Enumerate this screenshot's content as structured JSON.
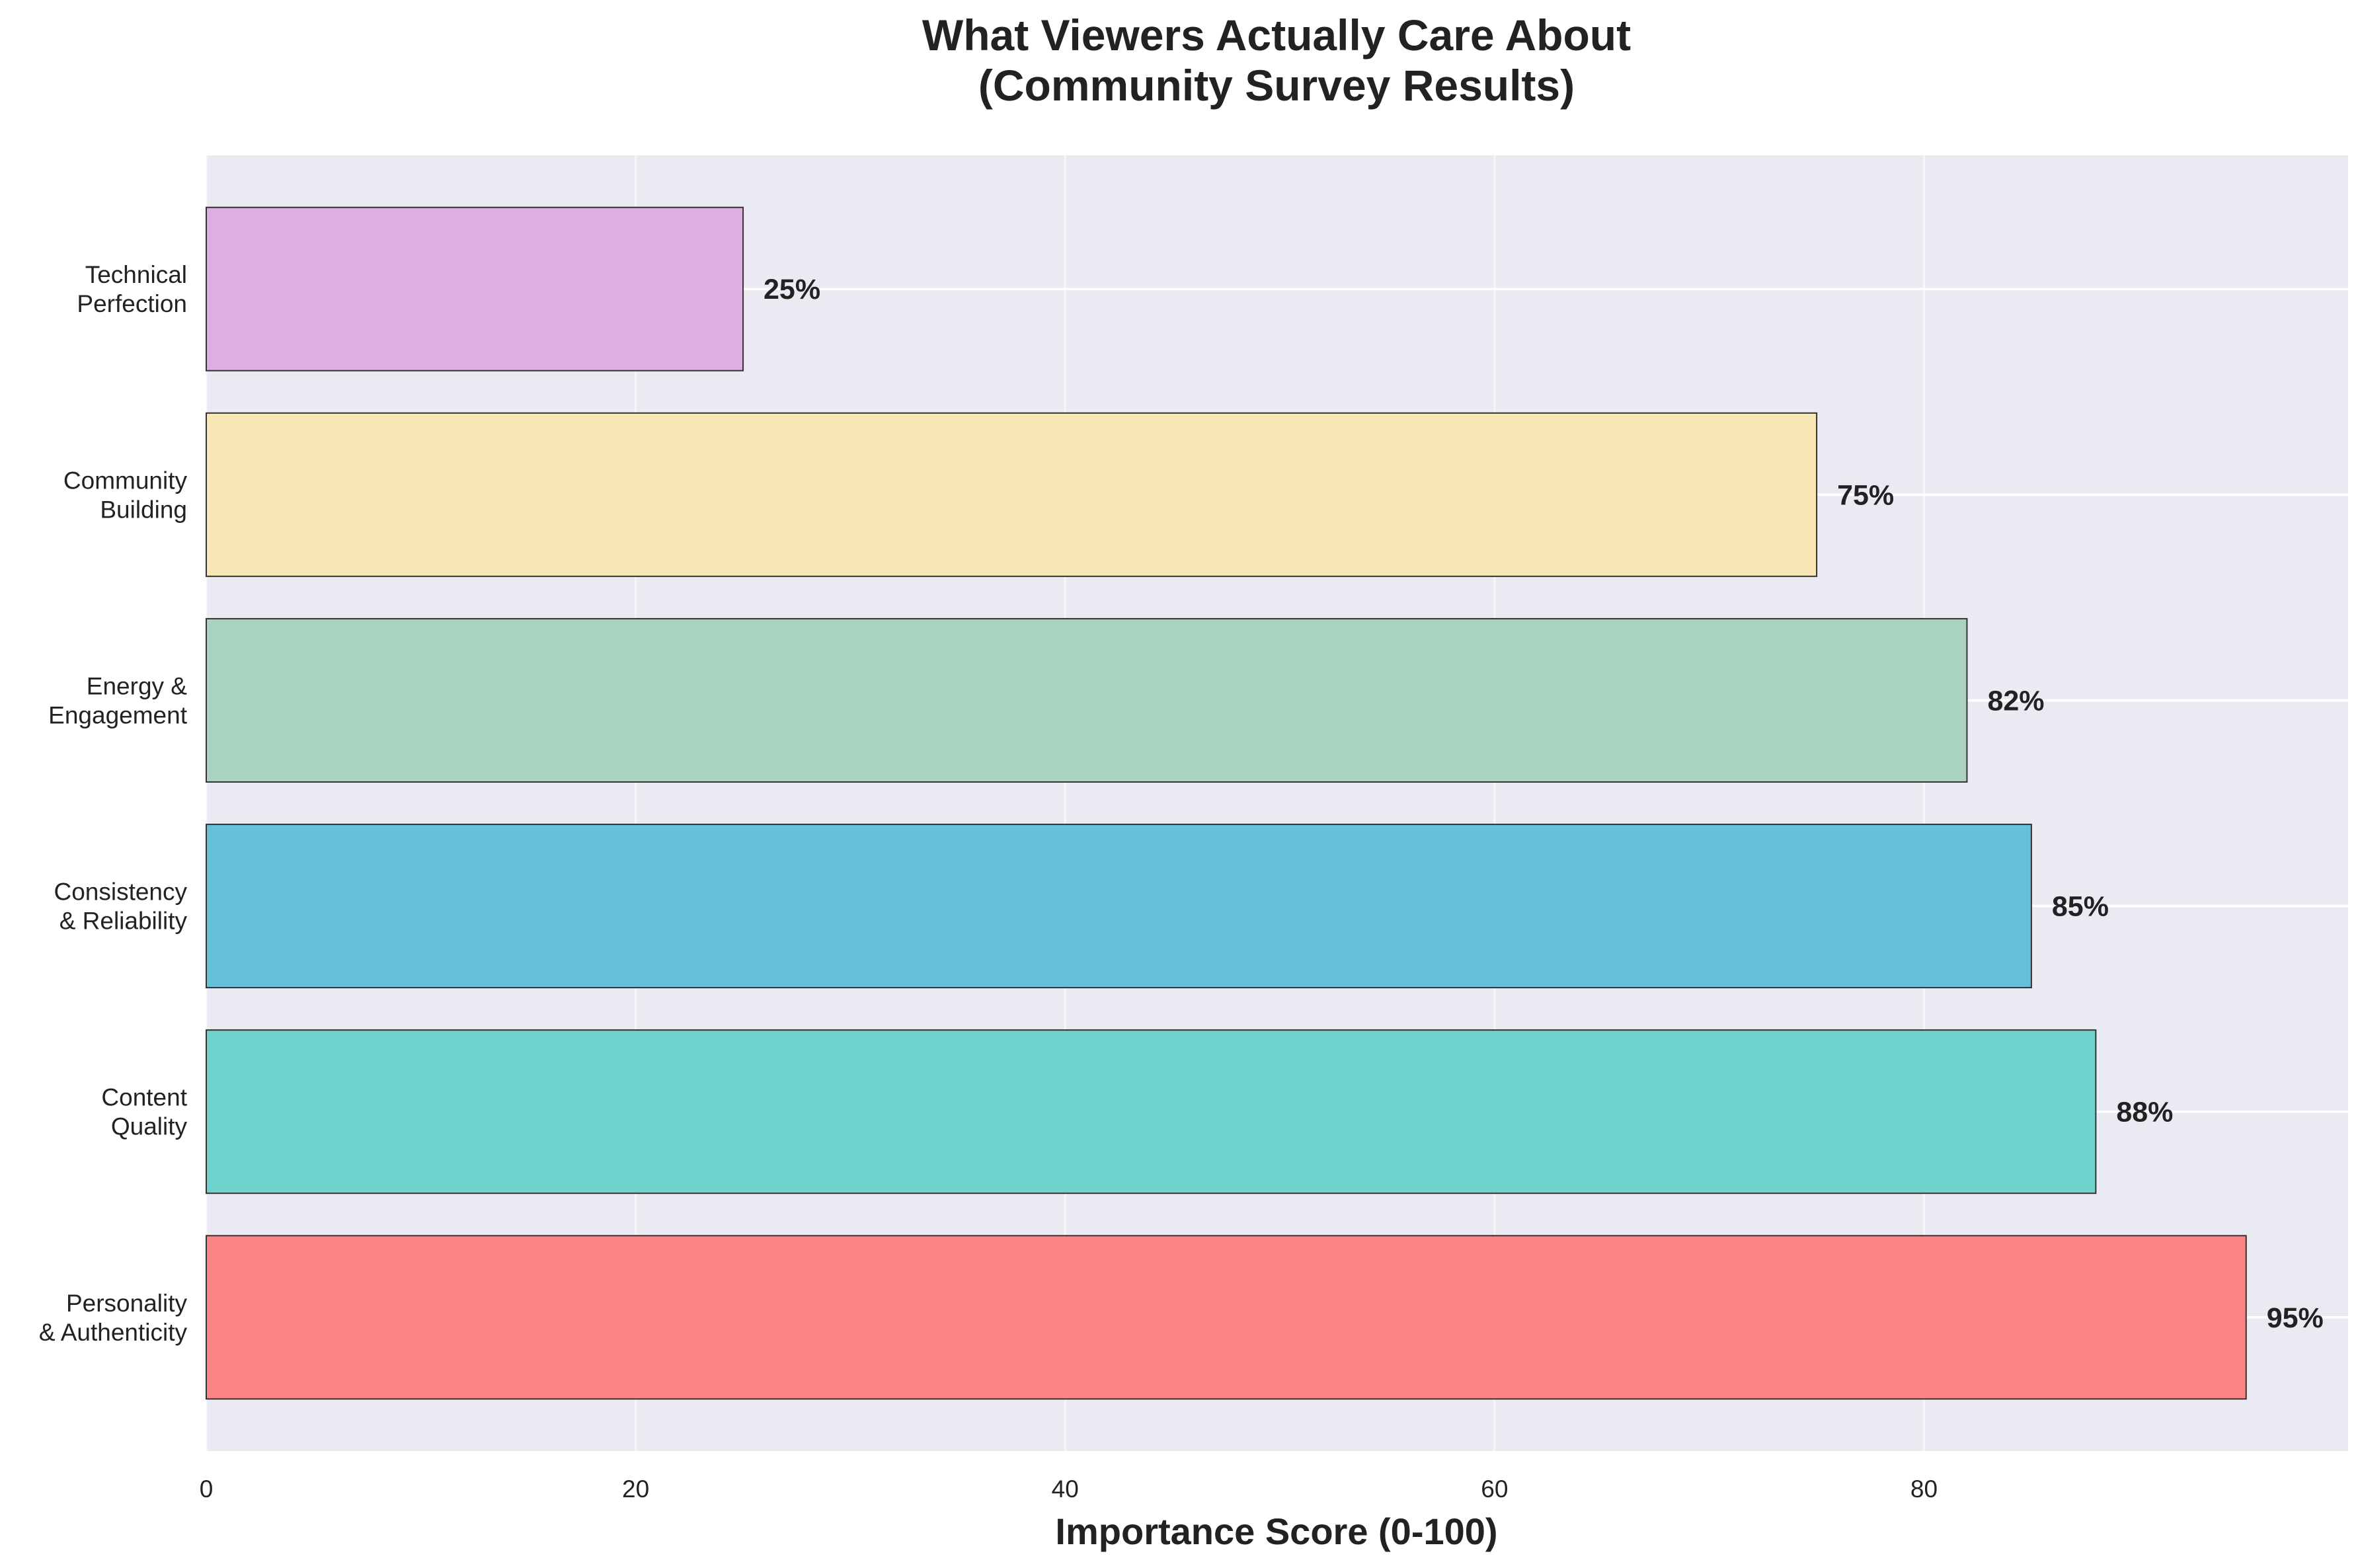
{
  "chart_data": {
    "type": "bar",
    "orientation": "horizontal",
    "title_lines": [
      "What Viewers Actually Care About",
      "(Community Survey Results)"
    ],
    "xlabel": "Importance Score (0-100)",
    "ylabel": "",
    "xlim": [
      0,
      100
    ],
    "xticks": [
      0,
      20,
      40,
      60,
      80
    ],
    "grid": true,
    "categories": [
      {
        "lines": [
          "Personality",
          "& Authenticity"
        ]
      },
      {
        "lines": [
          "Content",
          "Quality"
        ]
      },
      {
        "lines": [
          "Consistency",
          "& Reliability"
        ]
      },
      {
        "lines": [
          "Energy &",
          "Engagement"
        ]
      },
      {
        "lines": [
          "Community",
          "Building"
        ]
      },
      {
        "lines": [
          "Technical",
          "Perfection"
        ]
      }
    ],
    "values": [
      95,
      88,
      85,
      82,
      75,
      25
    ],
    "value_labels": [
      "95%",
      "88%",
      "85%",
      "82%",
      "75%",
      "25%"
    ],
    "colors": [
      "#FB8586",
      "#6FD2CD",
      "#66C0D7",
      "#A9D3C0",
      "#F8E8B5",
      "#DDAEE0"
    ]
  }
}
